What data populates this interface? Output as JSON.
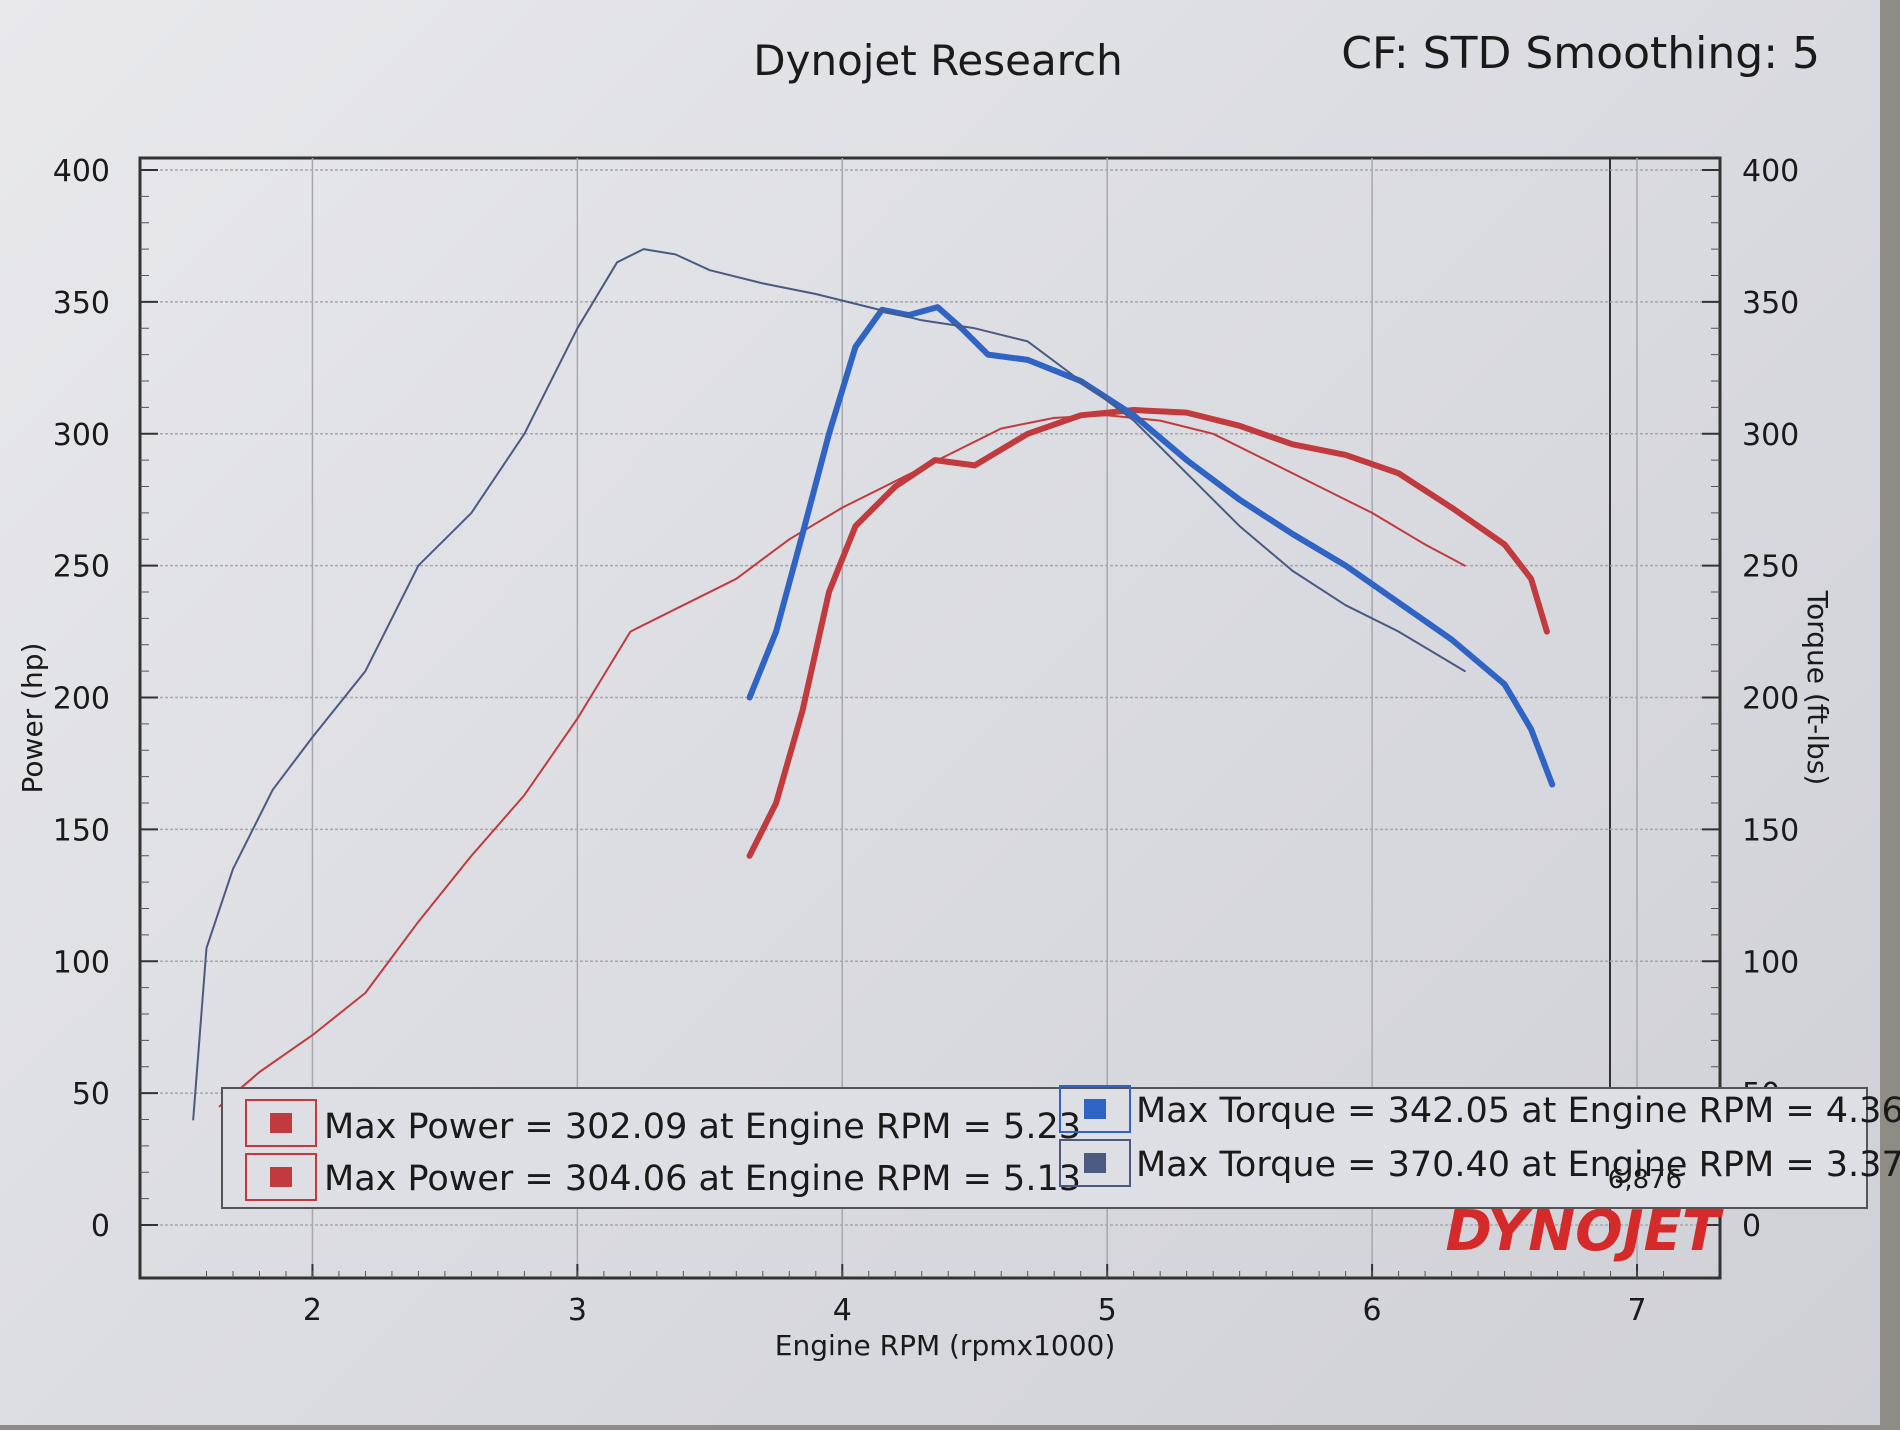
{
  "header": {
    "title": "Dynojet Research",
    "settings": "CF: STD Smoothing: 5"
  },
  "colors": {
    "power_red": "#c03a3e",
    "torque_blue": "#2f63c4",
    "torque_dark": "#4a5a80",
    "logo_red": "#d42a2a"
  },
  "logo": {
    "text": "DYNOJET"
  },
  "chart_data": {
    "type": "line",
    "xlabel": "Engine RPM (rpmx1000)",
    "ylabel": "Power (hp)",
    "y2label": "Torque (ft-lbs)",
    "xlim": [
      1.5,
      7.2
    ],
    "ylim": [
      0,
      400
    ],
    "y2lim": [
      0,
      400
    ],
    "x_ticks": [
      "2",
      "3",
      "4",
      "5",
      "6",
      "7"
    ],
    "y_ticks": [
      "0",
      "50",
      "100",
      "150",
      "200",
      "250",
      "300",
      "350",
      "400"
    ],
    "y2_ticks": [
      "0",
      "50",
      "100",
      "150",
      "200",
      "250",
      "300",
      "350",
      "400"
    ],
    "grid": true,
    "legend_position": "bottom",
    "end_marker": "6,876",
    "series": [
      {
        "name": "Max Power = 302.09 at Engine RPM = 5.23",
        "metric": "power",
        "axis": "left",
        "color": "#c03a3e",
        "weight": "thick",
        "x": [
          3.65,
          3.75,
          3.85,
          3.95,
          4.05,
          4.2,
          4.35,
          4.5,
          4.7,
          4.9,
          5.1,
          5.3,
          5.5,
          5.7,
          5.9,
          6.1,
          6.3,
          6.5,
          6.6,
          6.66
        ],
        "y": [
          140,
          160,
          195,
          240,
          265,
          280,
          290,
          288,
          300,
          307,
          309,
          308,
          303,
          296,
          292,
          285,
          272,
          258,
          245,
          225
        ]
      },
      {
        "name": "Max Power = 304.06 at Engine RPM = 5.13",
        "metric": "power",
        "axis": "left",
        "color": "#c03a3e",
        "weight": "thin",
        "x": [
          1.65,
          1.8,
          2.0,
          2.2,
          2.4,
          2.6,
          2.8,
          3.0,
          3.2,
          3.4,
          3.6,
          3.8,
          4.0,
          4.2,
          4.4,
          4.6,
          4.8,
          5.0,
          5.2,
          5.4,
          5.6,
          5.8,
          6.0,
          6.2,
          6.35
        ],
        "y": [
          45,
          58,
          72,
          88,
          115,
          140,
          163,
          192,
          225,
          235,
          245,
          260,
          272,
          282,
          292,
          302,
          306,
          307,
          305,
          300,
          290,
          280,
          270,
          258,
          250
        ]
      },
      {
        "name": "Max Torque = 342.05 at Engine RPM = 4.36",
        "metric": "torque",
        "axis": "right",
        "color": "#2f63c4",
        "weight": "thick",
        "x": [
          3.65,
          3.75,
          3.85,
          3.95,
          4.05,
          4.15,
          4.25,
          4.36,
          4.45,
          4.55,
          4.7,
          4.9,
          5.1,
          5.3,
          5.5,
          5.7,
          5.9,
          6.1,
          6.3,
          6.5,
          6.6,
          6.68
        ],
        "y": [
          200,
          225,
          262,
          300,
          333,
          347,
          345,
          348,
          340,
          330,
          328,
          320,
          307,
          290,
          275,
          262,
          250,
          236,
          222,
          205,
          188,
          167
        ]
      },
      {
        "name": "Max Torque = 370.40 at Engine RPM = 3.37",
        "metric": "torque",
        "axis": "right",
        "color": "#4a5a80",
        "weight": "thin",
        "x": [
          1.55,
          1.6,
          1.7,
          1.85,
          2.0,
          2.2,
          2.4,
          2.6,
          2.8,
          3.0,
          3.15,
          3.25,
          3.37,
          3.5,
          3.7,
          3.9,
          4.1,
          4.3,
          4.5,
          4.7,
          4.9,
          5.1,
          5.3,
          5.5,
          5.7,
          5.9,
          6.1,
          6.35
        ],
        "y": [
          40,
          105,
          135,
          165,
          185,
          210,
          250,
          270,
          300,
          340,
          365,
          370,
          368,
          362,
          357,
          353,
          348,
          343,
          340,
          335,
          320,
          305,
          285,
          265,
          248,
          235,
          225,
          210
        ]
      }
    ]
  }
}
